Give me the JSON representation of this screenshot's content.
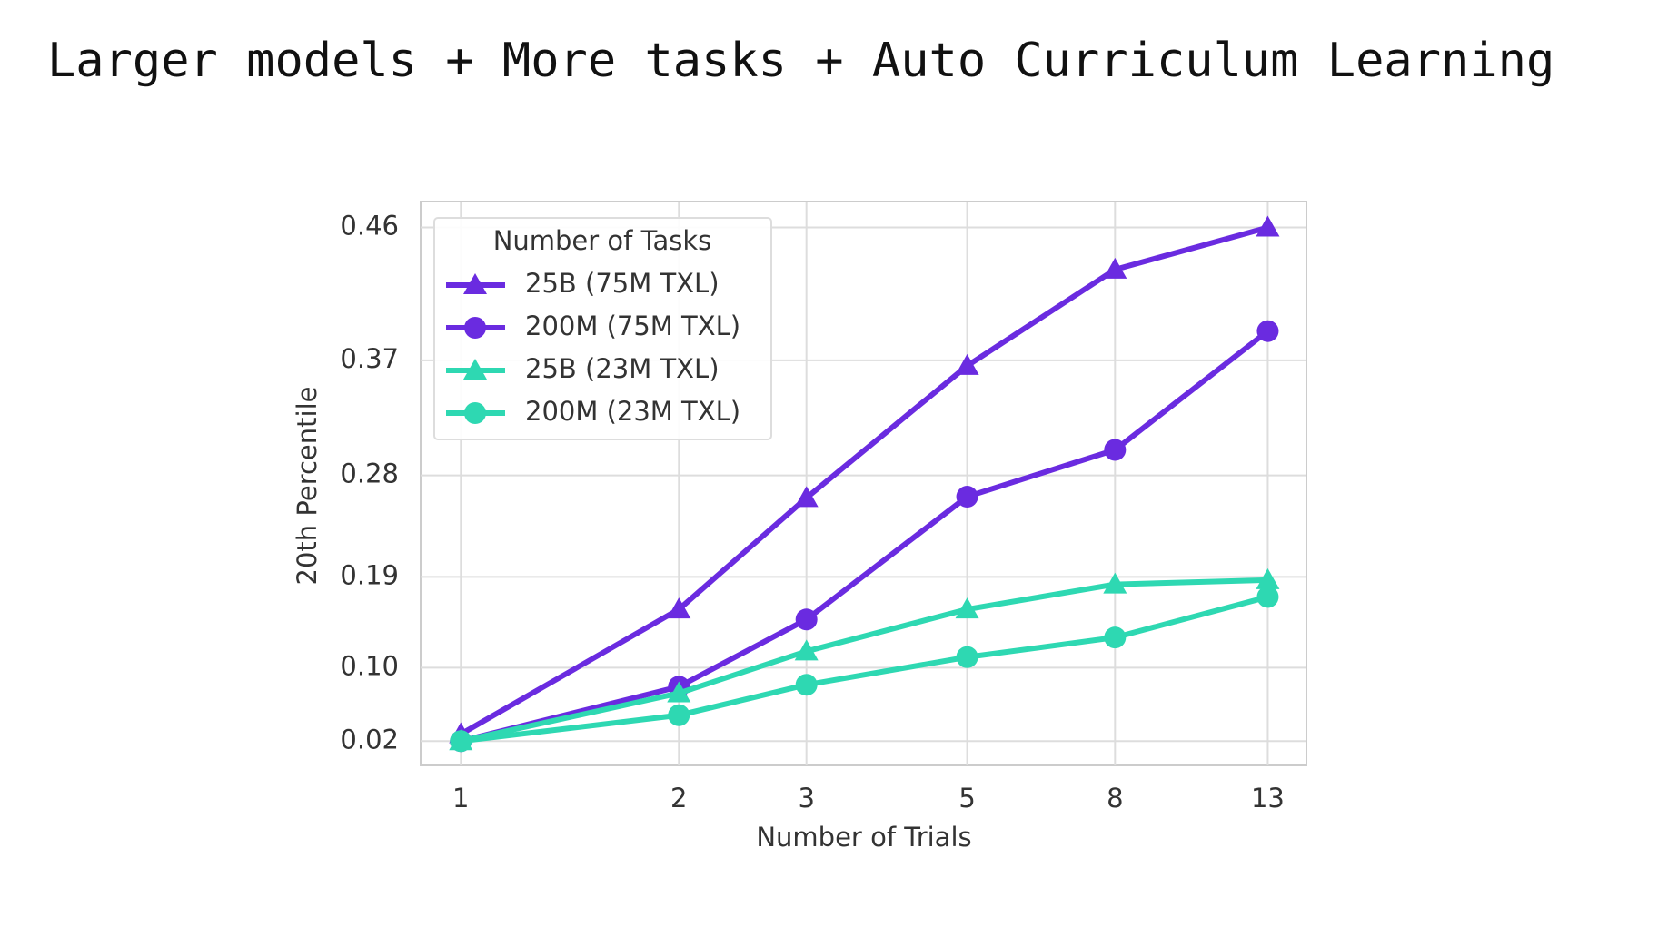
{
  "header": {
    "title": "Larger models + More tasks + Auto Curriculum Learning"
  },
  "chart_data": {
    "type": "line",
    "xlabel": "Number of Trials",
    "ylabel": "20th Percentile",
    "x": [
      1,
      2,
      3,
      5,
      8,
      13
    ],
    "xscale": "log",
    "xlim": [
      0.88,
      14.7
    ],
    "xticks": [
      1,
      2,
      3,
      5,
      8,
      13
    ],
    "yscale": "log-one-minus",
    "ylim": [
      -0.008,
      0.476
    ],
    "yticks": [
      0.02,
      {
        "value": 0.1,
        "label": "0.10"
      },
      0.19,
      0.28,
      0.37,
      0.46
    ],
    "grid": true,
    "legend": "upper left",
    "legend_title": "Number of Tasks",
    "series": [
      {
        "name": "25B (75M TXL)",
        "color": "#6a2be0",
        "marker": "triangle",
        "values": [
          0.028,
          0.159,
          0.261,
          0.366,
          0.433,
          0.46
        ]
      },
      {
        "name": "200M (75M TXL)",
        "color": "#6a2be0",
        "marker": "circle",
        "values": [
          0.02,
          0.08,
          0.149,
          0.262,
          0.301,
          0.391
        ]
      },
      {
        "name": "25B (23M TXL)",
        "color": "#2ed8b2",
        "marker": "triangle",
        "values": [
          0.02,
          0.073,
          0.117,
          0.159,
          0.183,
          0.187
        ]
      },
      {
        "name": "200M (23M TXL)",
        "color": "#2ed8b2",
        "marker": "circle",
        "values": [
          0.02,
          0.049,
          0.082,
          0.111,
          0.131,
          0.171
        ]
      }
    ]
  }
}
